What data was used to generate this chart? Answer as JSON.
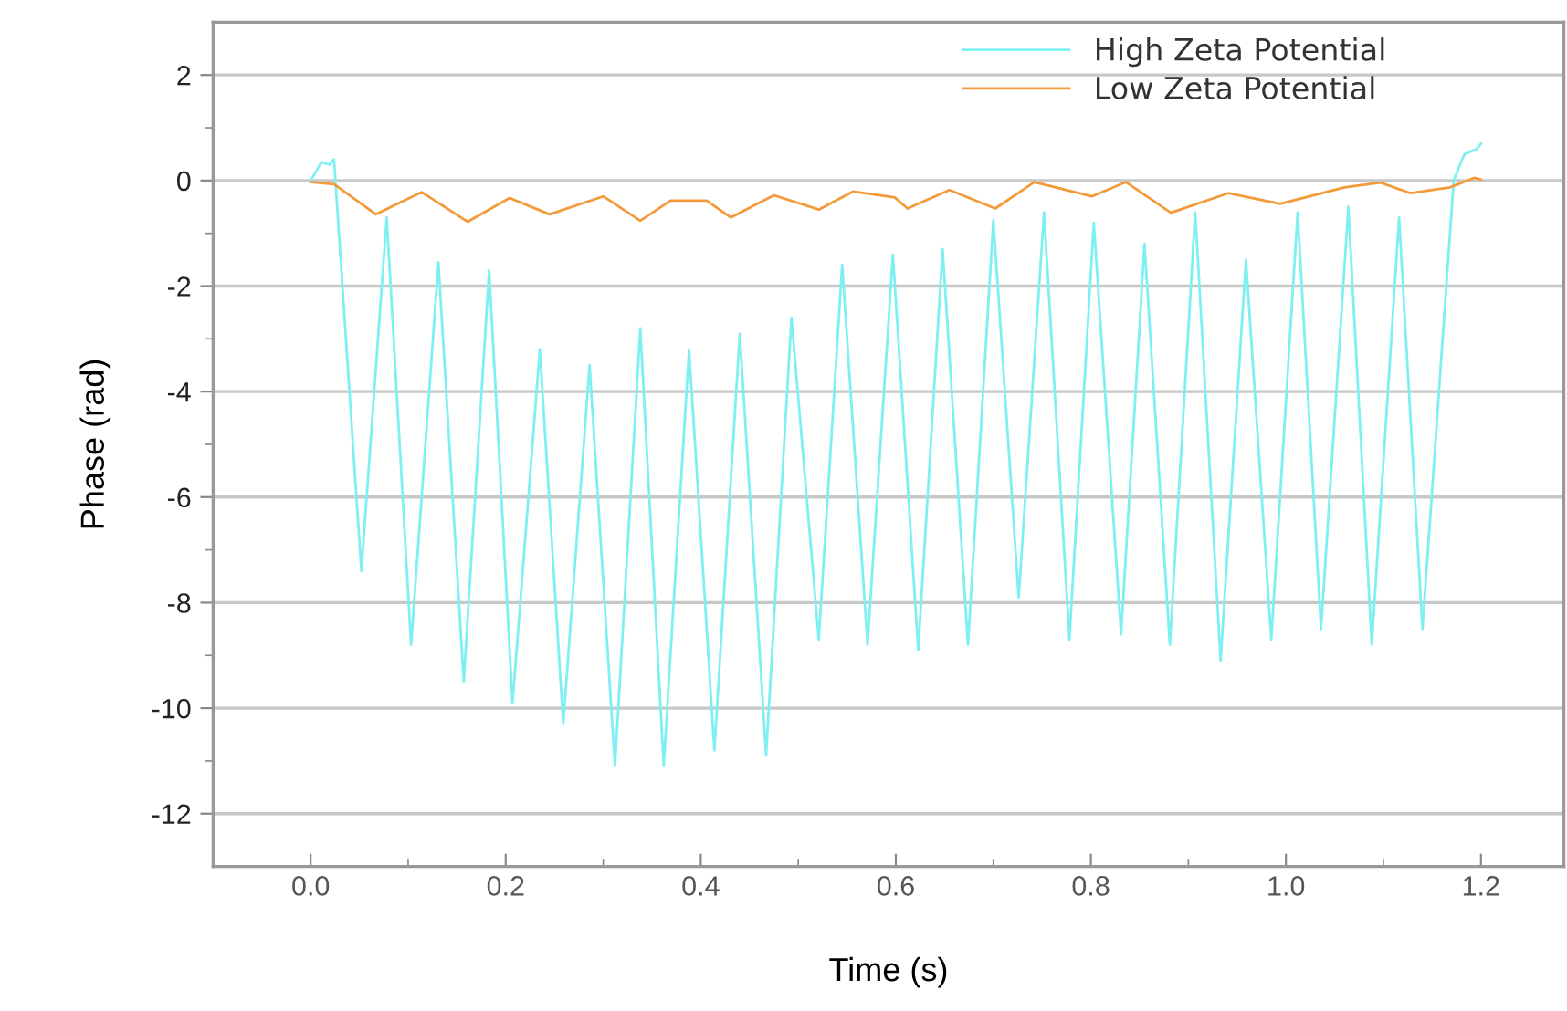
{
  "chart_data": {
    "type": "line",
    "xlabel": "Time (s)",
    "ylabel": "Phase (rad)",
    "xlim": [
      -0.1,
      1.285
    ],
    "ylim": [
      -13,
      3
    ],
    "xticks": [
      {
        "value": 0,
        "label": "0.0"
      },
      {
        "value": 0.2,
        "label": "0.2"
      },
      {
        "value": 0.4,
        "label": "0.4"
      },
      {
        "value": 0.6,
        "label": "0.6"
      },
      {
        "value": 0.8,
        "label": "0.8"
      },
      {
        "value": 1.0,
        "label": "1.0"
      },
      {
        "value": 1.2,
        "label": "1.2"
      },
      {
        "value": 0.1,
        "label": null
      },
      {
        "value": 0.3,
        "label": null
      },
      {
        "value": 0.5,
        "label": null
      },
      {
        "value": 0.7,
        "label": null
      },
      {
        "value": 0.9,
        "label": null
      },
      {
        "value": 1.1,
        "label": null
      }
    ],
    "yticks": [
      2,
      0,
      -2,
      -4,
      -6,
      -8,
      -10,
      -12,
      {
        "value": 1,
        "label": null
      },
      {
        "value": -1,
        "label": null
      },
      {
        "value": -3,
        "label": null
      },
      {
        "value": -5,
        "label": null
      },
      {
        "value": -7,
        "label": null
      },
      {
        "value": -9,
        "label": null
      },
      {
        "value": -11,
        "label": null
      }
    ],
    "grid": "y",
    "legend": "top right",
    "series": [
      {
        "name": "High Zeta Potential",
        "color": "#7ff0f2",
        "x": [
          0.0,
          0.011,
          0.019,
          0.024,
          0.052,
          0.078,
          0.103,
          0.131,
          0.157,
          0.183,
          0.207,
          0.235,
          0.259,
          0.286,
          0.312,
          0.338,
          0.362,
          0.388,
          0.414,
          0.44,
          0.467,
          0.493,
          0.521,
          0.545,
          0.571,
          0.597,
          0.623,
          0.648,
          0.674,
          0.7,
          0.726,
          0.752,
          0.778,
          0.803,
          0.831,
          0.855,
          0.881,
          0.907,
          0.933,
          0.959,
          0.985,
          1.012,
          1.036,
          1.064,
          1.088,
          1.116,
          1.14,
          1.172,
          1.183,
          1.196,
          1.2
        ],
        "values": [
          0.0,
          0.35,
          0.3,
          0.4,
          -7.4,
          -0.7,
          -8.8,
          -1.55,
          -9.5,
          -1.7,
          -9.9,
          -3.2,
          -10.3,
          -3.5,
          -11.1,
          -2.8,
          -11.1,
          -3.2,
          -10.8,
          -2.9,
          -10.9,
          -2.6,
          -8.7,
          -1.6,
          -8.8,
          -1.4,
          -8.9,
          -1.3,
          -8.8,
          -0.75,
          -7.9,
          -0.6,
          -8.7,
          -0.8,
          -8.6,
          -1.2,
          -8.8,
          -0.6,
          -9.1,
          -1.5,
          -8.7,
          -0.6,
          -8.5,
          -0.5,
          -8.8,
          -0.7,
          -8.5,
          0.0,
          0.5,
          0.6,
          0.7
        ]
      },
      {
        "name": "Low Zeta Potential",
        "color": "#f39a3a",
        "x": [
          0.0,
          0.024,
          0.067,
          0.114,
          0.161,
          0.204,
          0.245,
          0.3,
          0.338,
          0.369,
          0.406,
          0.431,
          0.475,
          0.521,
          0.556,
          0.599,
          0.612,
          0.655,
          0.702,
          0.742,
          0.801,
          0.836,
          0.882,
          0.941,
          0.994,
          1.06,
          1.097,
          1.128,
          1.168,
          1.193,
          1.2
        ],
        "values": [
          -0.03,
          -0.07,
          -0.64,
          -0.22,
          -0.78,
          -0.33,
          -0.64,
          -0.3,
          -0.76,
          -0.38,
          -0.38,
          -0.7,
          -0.28,
          -0.55,
          -0.21,
          -0.32,
          -0.53,
          -0.18,
          -0.53,
          -0.03,
          -0.3,
          -0.03,
          -0.61,
          -0.24,
          -0.44,
          -0.13,
          -0.04,
          -0.24,
          -0.13,
          0.05,
          0.02
        ]
      }
    ]
  }
}
